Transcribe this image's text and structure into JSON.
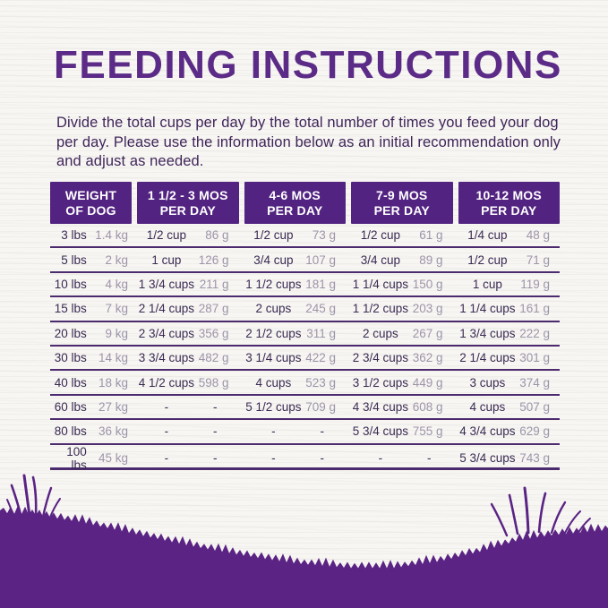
{
  "title": "FEEDING INSTRUCTIONS",
  "intro": "Divide the total cups per day by the total number of times you feed your dog per day. Please use the information below as an initial recommendation only and adjust as needed.",
  "colors": {
    "brand_purple": "#5b2b87",
    "header_purple": "#522381",
    "grass_purple": "#5a2384",
    "dark_text": "#3a2a52",
    "muted_text": "#9d94a9",
    "background": "#f7f6f3"
  },
  "table": {
    "headers": [
      {
        "line1": "WEIGHT",
        "line2": "OF DOG"
      },
      {
        "line1": "1 1/2 - 3 MOS",
        "line2": "PER DAY"
      },
      {
        "line1": "4-6 MOS",
        "line2": "PER DAY"
      },
      {
        "line1": "7-9 MOS",
        "line2": "PER DAY"
      },
      {
        "line1": "10-12 MOS",
        "line2": "PER DAY"
      }
    ],
    "rows": [
      {
        "lbs": "3 lbs",
        "kg": "1.4 kg",
        "cols": [
          {
            "cups": "1/2 cup",
            "g": "86 g"
          },
          {
            "cups": "1/2 cup",
            "g": "73 g"
          },
          {
            "cups": "1/2 cup",
            "g": "61 g"
          },
          {
            "cups": "1/4 cup",
            "g": "48 g"
          }
        ]
      },
      {
        "lbs": "5 lbs",
        "kg": "2 kg",
        "cols": [
          {
            "cups": "1 cup",
            "g": "126 g"
          },
          {
            "cups": "3/4 cup",
            "g": "107 g"
          },
          {
            "cups": "3/4 cup",
            "g": "89 g"
          },
          {
            "cups": "1/2 cup",
            "g": "71 g"
          }
        ]
      },
      {
        "lbs": "10 lbs",
        "kg": "4 kg",
        "cols": [
          {
            "cups": "1 3/4 cups",
            "g": "211 g"
          },
          {
            "cups": "1 1/2 cups",
            "g": "181 g"
          },
          {
            "cups": "1 1/4 cups",
            "g": "150 g"
          },
          {
            "cups": "1 cup",
            "g": "119 g"
          }
        ]
      },
      {
        "lbs": "15 lbs",
        "kg": "7 kg",
        "cols": [
          {
            "cups": "2 1/4 cups",
            "g": "287 g"
          },
          {
            "cups": "2 cups",
            "g": "245 g"
          },
          {
            "cups": "1 1/2 cups",
            "g": "203 g"
          },
          {
            "cups": "1 1/4 cups",
            "g": "161 g"
          }
        ]
      },
      {
        "lbs": "20 lbs",
        "kg": "9 kg",
        "cols": [
          {
            "cups": "2 3/4 cups",
            "g": "356 g"
          },
          {
            "cups": "2 1/2 cups",
            "g": "311 g"
          },
          {
            "cups": "2 cups",
            "g": "267 g"
          },
          {
            "cups": "1 3/4 cups",
            "g": "222 g"
          }
        ]
      },
      {
        "lbs": "30 lbs",
        "kg": "14 kg",
        "cols": [
          {
            "cups": "3 3/4 cups",
            "g": "482 g"
          },
          {
            "cups": "3 1/4 cups",
            "g": "422 g"
          },
          {
            "cups": "2 3/4 cups",
            "g": "362 g"
          },
          {
            "cups": "2 1/4 cups",
            "g": "301 g"
          }
        ]
      },
      {
        "lbs": "40 lbs",
        "kg": "18 kg",
        "cols": [
          {
            "cups": "4 1/2 cups",
            "g": "598 g"
          },
          {
            "cups": "4 cups",
            "g": "523 g"
          },
          {
            "cups": "3 1/2 cups",
            "g": "449 g"
          },
          {
            "cups": "3 cups",
            "g": "374 g"
          }
        ]
      },
      {
        "lbs": "60 lbs",
        "kg": "27 kg",
        "cols": [
          {
            "cups": "-",
            "g": "-"
          },
          {
            "cups": "5 1/2 cups",
            "g": "709 g"
          },
          {
            "cups": "4 3/4 cups",
            "g": "608 g"
          },
          {
            "cups": "4 cups",
            "g": "507 g"
          }
        ]
      },
      {
        "lbs": "80 lbs",
        "kg": "36 kg",
        "cols": [
          {
            "cups": "-",
            "g": "-"
          },
          {
            "cups": "-",
            "g": "-"
          },
          {
            "cups": "5 3/4 cups",
            "g": "755 g"
          },
          {
            "cups": "4 3/4 cups",
            "g": "629 g"
          }
        ]
      },
      {
        "lbs": "100 lbs",
        "kg": "45 kg",
        "cols": [
          {
            "cups": "-",
            "g": "-"
          },
          {
            "cups": "-",
            "g": "-"
          },
          {
            "cups": "-",
            "g": "-"
          },
          {
            "cups": "5 3/4 cups",
            "g": "743 g"
          }
        ]
      }
    ]
  }
}
